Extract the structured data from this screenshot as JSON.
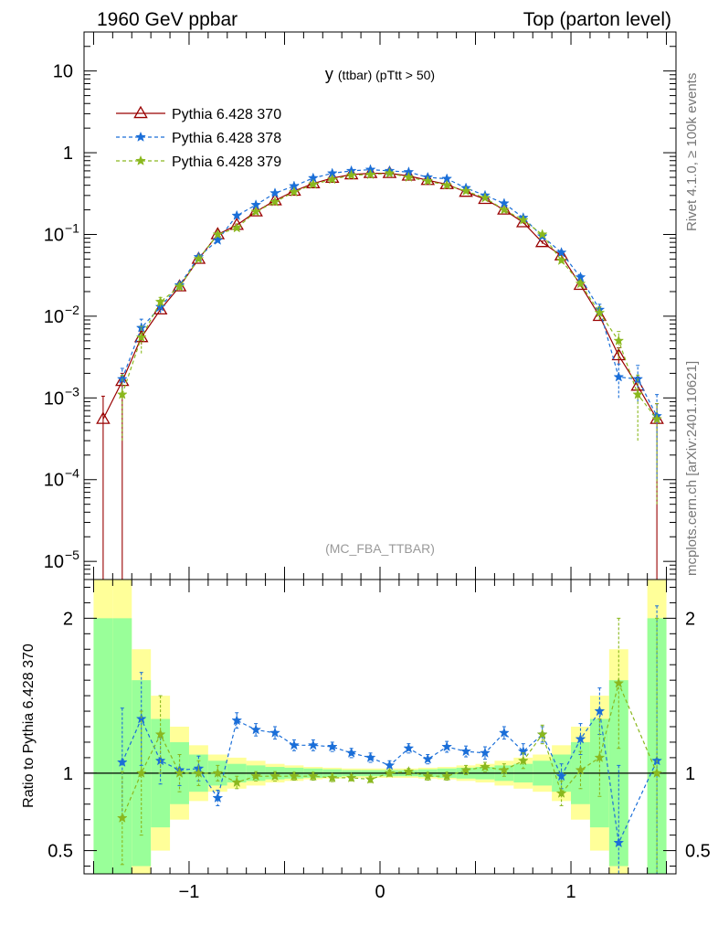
{
  "header": {
    "left": "1960 GeV ppbar",
    "right": "Top (parton level)"
  },
  "side": {
    "top": "Rivet 4.1.0, ≥ 100k events",
    "bottom": "mcplots.cern.ch [arXiv:2401.10621]"
  },
  "colors": {
    "s370": "#990000",
    "s378": "#1a6ed8",
    "s379": "#8ab81e",
    "band_inner": "#99ff99",
    "band_outer": "#ffff99"
  },
  "chart_data": [
    {
      "type": "line",
      "title": "y (ttbar) (pTtt > 50)",
      "title_main": "y",
      "title_sub": "(ttbar) (pTtt > 50)",
      "watermark": "(MC_FBA_TTBAR)",
      "xlabel": "",
      "ylabel": "",
      "yscale": "log",
      "xlim": [
        -1.55,
        1.55
      ],
      "ylim": [
        6e-06,
        30
      ],
      "yticks": [
        {
          "v": 10,
          "label": "10",
          "exp": ""
        },
        {
          "v": 1,
          "label": "1",
          "exp": ""
        },
        {
          "v": 0.1,
          "label": "10",
          "exp": "−1"
        },
        {
          "v": 0.01,
          "label": "10",
          "exp": "−2"
        },
        {
          "v": 0.001,
          "label": "10",
          "exp": "−3"
        },
        {
          "v": 0.0001,
          "label": "10",
          "exp": "−4"
        },
        {
          "v": 1e-05,
          "label": "10",
          "exp": "−5"
        }
      ],
      "legend_position": "top-left",
      "x": [
        -1.45,
        -1.35,
        -1.25,
        -1.15,
        -1.05,
        -0.95,
        -0.85,
        -0.75,
        -0.65,
        -0.55,
        -0.45,
        -0.35,
        -0.25,
        -0.15,
        -0.05,
        0.05,
        0.15,
        0.25,
        0.35,
        0.45,
        0.55,
        0.65,
        0.75,
        0.85,
        0.95,
        1.05,
        1.15,
        1.25,
        1.35,
        1.45
      ],
      "series": [
        {
          "name": "Pythia 6.428 370",
          "marker": "triangle",
          "style": "solid",
          "values": [
            0.00055,
            0.0016,
            0.0055,
            0.012,
            0.023,
            0.05,
            0.1,
            0.13,
            0.19,
            0.26,
            0.34,
            0.42,
            0.49,
            0.54,
            0.56,
            0.56,
            0.52,
            0.46,
            0.41,
            0.33,
            0.27,
            0.2,
            0.14,
            0.08,
            0.055,
            0.024,
            0.01,
            0.0033,
            0.0014,
            0.00055
          ],
          "err_low": [
            0.00055,
            0.0016,
            0.001,
            0.001,
            0.001,
            0.002,
            0.003,
            0.004,
            0.005,
            0.006,
            0.006,
            0.007,
            0.007,
            0.007,
            0.007,
            0.007,
            0.007,
            0.007,
            0.006,
            0.006,
            0.005,
            0.005,
            0.004,
            0.003,
            0.002,
            0.001,
            0.001,
            0.0008,
            0.0004,
            0.00055
          ],
          "err_high": [
            0.0005,
            0.0004,
            0.001,
            0.001,
            0.001,
            0.002,
            0.003,
            0.004,
            0.005,
            0.006,
            0.006,
            0.007,
            0.007,
            0.007,
            0.007,
            0.007,
            0.007,
            0.007,
            0.006,
            0.006,
            0.005,
            0.005,
            0.004,
            0.003,
            0.002,
            0.001,
            0.001,
            0.0008,
            0.0004,
            0.0003
          ]
        },
        {
          "name": "Pythia 6.428 378",
          "marker": "star",
          "style": "dashed",
          "values": [
            null,
            0.0017,
            0.0072,
            0.013,
            0.024,
            0.053,
            0.085,
            0.17,
            0.23,
            0.32,
            0.39,
            0.49,
            0.56,
            0.6,
            0.62,
            0.6,
            0.58,
            0.5,
            0.48,
            0.37,
            0.3,
            0.24,
            0.16,
            0.095,
            0.06,
            0.03,
            0.012,
            0.0018,
            0.0017,
            0.0006
          ],
          "err_low": [
            0,
            0.0006,
            0.002,
            0.002,
            0.002,
            0.003,
            0.004,
            0.006,
            0.008,
            0.01,
            0.01,
            0.012,
            0.012,
            0.012,
            0.012,
            0.012,
            0.012,
            0.012,
            0.012,
            0.01,
            0.01,
            0.008,
            0.006,
            0.004,
            0.003,
            0.002,
            0.002,
            0.0008,
            0.0008,
            0.0005
          ],
          "err_high": [
            0,
            0.0006,
            0.002,
            0.002,
            0.002,
            0.003,
            0.004,
            0.006,
            0.008,
            0.01,
            0.01,
            0.012,
            0.012,
            0.012,
            0.012,
            0.012,
            0.012,
            0.012,
            0.012,
            0.01,
            0.01,
            0.008,
            0.006,
            0.004,
            0.003,
            0.002,
            0.002,
            0.0008,
            0.0008,
            0.0005
          ]
        },
        {
          "name": "Pythia 6.428 379",
          "marker": "star",
          "style": "dashed",
          "values": [
            null,
            0.0011,
            0.0055,
            0.015,
            0.023,
            0.05,
            0.1,
            0.12,
            0.19,
            0.25,
            0.33,
            0.41,
            0.47,
            0.53,
            0.54,
            0.56,
            0.5,
            0.45,
            0.4,
            0.34,
            0.28,
            0.2,
            0.15,
            0.1,
            0.048,
            0.025,
            0.011,
            0.005,
            0.0011,
            0.00055
          ],
          "err_low": [
            0,
            0.0008,
            0.002,
            0.002,
            0.002,
            0.003,
            0.004,
            0.005,
            0.007,
            0.008,
            0.008,
            0.01,
            0.01,
            0.01,
            0.01,
            0.01,
            0.01,
            0.01,
            0.01,
            0.008,
            0.008,
            0.007,
            0.005,
            0.004,
            0.003,
            0.002,
            0.002,
            0.002,
            0.0008,
            0.0005
          ],
          "err_high": [
            0,
            0.0008,
            0.002,
            0.002,
            0.002,
            0.003,
            0.004,
            0.005,
            0.007,
            0.008,
            0.008,
            0.01,
            0.01,
            0.01,
            0.01,
            0.01,
            0.01,
            0.01,
            0.01,
            0.008,
            0.008,
            0.007,
            0.005,
            0.004,
            0.003,
            0.002,
            0.002,
            0.0015,
            0.0008,
            0.0003
          ]
        }
      ]
    },
    {
      "type": "line",
      "title": "",
      "xlabel": "",
      "ylabel": "Ratio to Pythia 6.428 370",
      "xlim": [
        -1.55,
        1.55
      ],
      "ylim": [
        0.35,
        2.25
      ],
      "xticks": [
        {
          "v": -1,
          "label": "−1"
        },
        {
          "v": 0,
          "label": "0"
        },
        {
          "v": 1,
          "label": "1"
        }
      ],
      "yticks": [
        {
          "v": 0.5,
          "label": "0.5"
        },
        {
          "v": 1,
          "label": "1"
        },
        {
          "v": 2,
          "label": "2"
        }
      ],
      "band_outer_halfwidth": [
        1.35,
        1.35,
        0.8,
        0.5,
        0.3,
        0.18,
        0.12,
        0.1,
        0.08,
        0.06,
        0.05,
        0.04,
        0.035,
        0.03,
        0.03,
        0.03,
        0.03,
        0.035,
        0.04,
        0.05,
        0.06,
        0.08,
        0.1,
        0.12,
        0.18,
        0.3,
        0.5,
        0.8,
        1.35,
        1.35
      ],
      "band_inner_halfwidth": [
        1.0,
        1.0,
        0.6,
        0.35,
        0.2,
        0.12,
        0.08,
        0.06,
        0.05,
        0.04,
        0.035,
        0.03,
        0.025,
        0.02,
        0.02,
        0.02,
        0.02,
        0.025,
        0.03,
        0.035,
        0.04,
        0.05,
        0.06,
        0.08,
        0.12,
        0.2,
        0.35,
        0.6,
        1.0,
        1.0
      ],
      "band_present": [
        true,
        true,
        true,
        true,
        true,
        true,
        true,
        true,
        true,
        true,
        true,
        true,
        true,
        true,
        true,
        true,
        true,
        true,
        true,
        true,
        true,
        true,
        true,
        true,
        true,
        true,
        true,
        true,
        false,
        true
      ],
      "series": [
        {
          "name": "Pythia 6.428 378",
          "values": [
            null,
            1.07,
            1.35,
            1.08,
            1.02,
            1.03,
            0.84,
            1.34,
            1.28,
            1.26,
            1.18,
            1.18,
            1.17,
            1.13,
            1.1,
            1.05,
            1.16,
            1.09,
            1.17,
            1.14,
            1.13,
            1.26,
            1.14,
            1.25,
            0.98,
            1.22,
            1.4,
            0.55,
            null,
            1.08
          ],
          "err": [
            0,
            0.35,
            0.3,
            0.15,
            0.1,
            0.08,
            0.05,
            0.05,
            0.04,
            0.04,
            0.035,
            0.035,
            0.03,
            0.03,
            0.03,
            0.03,
            0.03,
            0.03,
            0.035,
            0.035,
            0.04,
            0.04,
            0.05,
            0.05,
            0.08,
            0.1,
            0.15,
            0.5,
            0,
            1.0
          ]
        },
        {
          "name": "Pythia 6.428 379",
          "values": [
            null,
            0.71,
            1.0,
            1.25,
            1.0,
            1.0,
            1.0,
            0.94,
            0.98,
            0.98,
            0.98,
            0.98,
            0.97,
            0.97,
            0.96,
            1.0,
            1.01,
            0.98,
            0.98,
            1.02,
            1.04,
            1.02,
            1.08,
            1.25,
            0.87,
            1.02,
            1.1,
            1.58,
            null,
            1.0
          ],
          "err": [
            0,
            0.3,
            0.4,
            0.25,
            0.12,
            0.08,
            0.05,
            0.04,
            0.03,
            0.03,
            0.025,
            0.025,
            0.025,
            0.02,
            0.02,
            0.02,
            0.02,
            0.025,
            0.025,
            0.03,
            0.03,
            0.04,
            0.05,
            0.06,
            0.08,
            0.12,
            0.25,
            0.42,
            0,
            1.0
          ]
        }
      ]
    }
  ]
}
